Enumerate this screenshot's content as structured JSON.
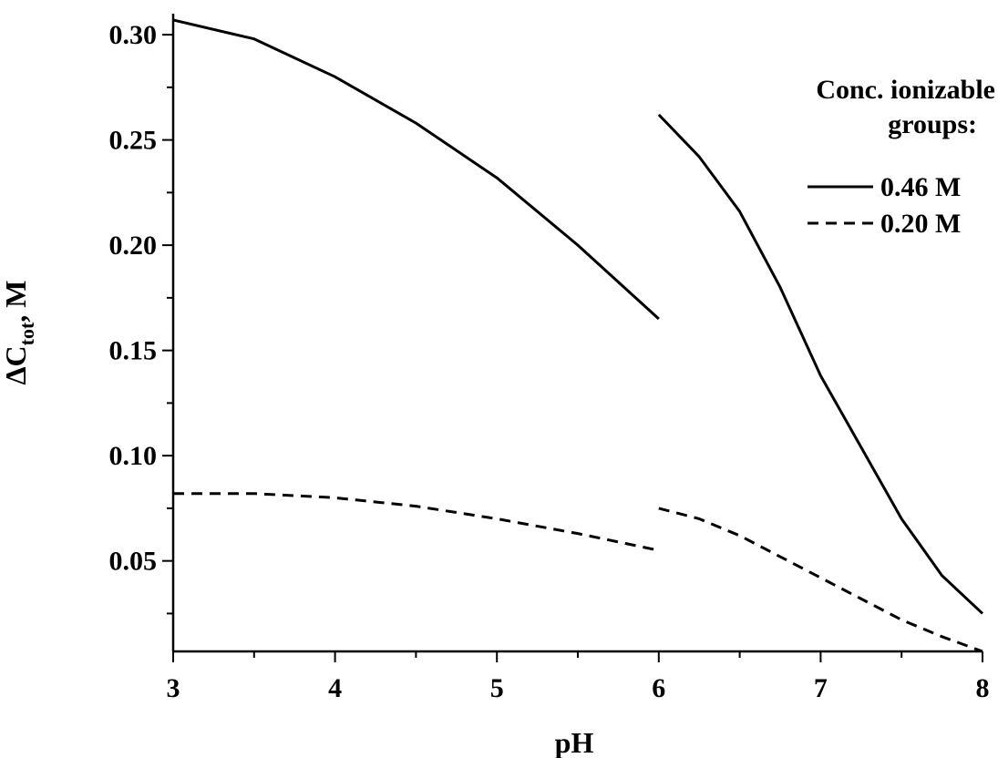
{
  "chart_data": {
    "type": "line",
    "xlabel": "pH",
    "ylabel_main": "ΔC",
    "ylabel_sub": "tot",
    "ylabel_tail": ", M",
    "xlim": [
      3,
      8
    ],
    "ylim": [
      0.007,
      0.31
    ],
    "x_ticks": [
      {
        "value": 3,
        "label": "3"
      },
      {
        "value": 4,
        "label": "4"
      },
      {
        "value": 5,
        "label": "5"
      },
      {
        "value": 6,
        "label": "6"
      },
      {
        "value": 7,
        "label": "7"
      },
      {
        "value": 8,
        "label": "8"
      }
    ],
    "y_ticks": [
      {
        "value": 0.05,
        "label": "0.05"
      },
      {
        "value": 0.1,
        "label": "0.10"
      },
      {
        "value": 0.15,
        "label": "0.15"
      },
      {
        "value": 0.2,
        "label": "0.20"
      },
      {
        "value": 0.25,
        "label": "0.25"
      },
      {
        "value": 0.3,
        "label": "0.30"
      }
    ],
    "grid": false,
    "legend": {
      "title_line1": "Conc. ionizable",
      "title_line2": "groups:",
      "placement": "top-right"
    },
    "series": [
      {
        "name": "0.46 M",
        "dash": "solid",
        "segments": [
          {
            "x": [
              3.0,
              3.5,
              4.0,
              4.5,
              5.0,
              5.5,
              6.0
            ],
            "y": [
              0.307,
              0.298,
              0.28,
              0.258,
              0.232,
              0.2,
              0.165
            ]
          },
          {
            "x": [
              6.0,
              6.25,
              6.5,
              6.75,
              7.0,
              7.25,
              7.5,
              7.75,
              8.0
            ],
            "y": [
              0.262,
              0.242,
              0.216,
              0.18,
              0.138,
              0.104,
              0.07,
              0.043,
              0.025
            ]
          }
        ]
      },
      {
        "name": "0.20 M",
        "dash": "dashed",
        "segments": [
          {
            "x": [
              3.0,
              3.5,
              4.0,
              4.5,
              5.0,
              5.5,
              6.0
            ],
            "y": [
              0.082,
              0.082,
              0.08,
              0.076,
              0.07,
              0.063,
              0.055
            ]
          },
          {
            "x": [
              6.0,
              6.25,
              6.5,
              6.75,
              7.0,
              7.25,
              7.5,
              7.75,
              8.0
            ],
            "y": [
              0.075,
              0.07,
              0.062,
              0.052,
              0.042,
              0.032,
              0.022,
              0.014,
              0.007
            ]
          }
        ]
      }
    ]
  }
}
